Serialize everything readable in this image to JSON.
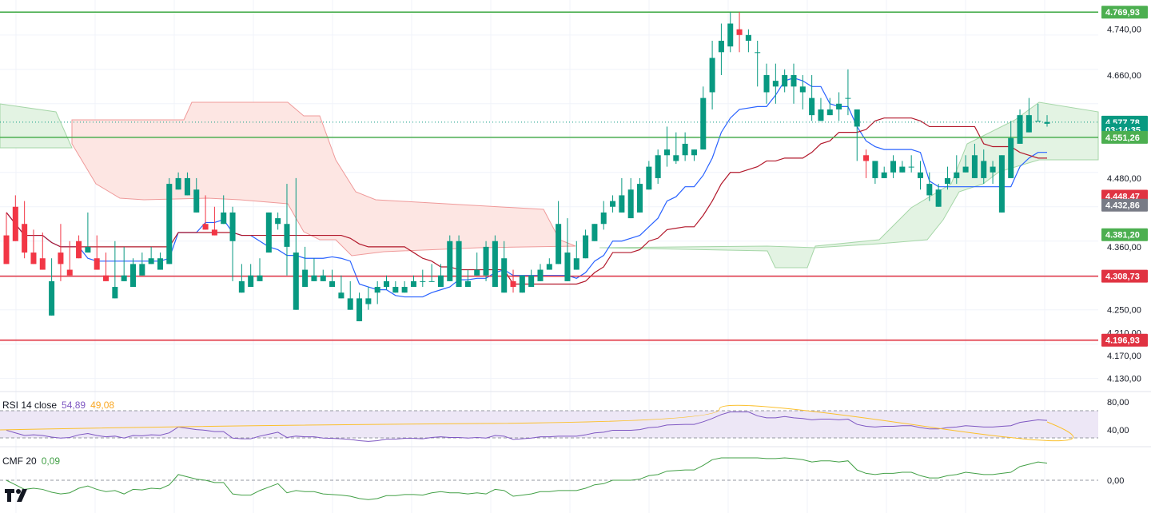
{
  "colors": {
    "up": "#089981",
    "down": "#f23645",
    "green_level": "#4caf50",
    "red_level": "#e03342",
    "grey_badge": "#787b86",
    "tenkan": "#2962ff",
    "kijun": "#b2182b",
    "cloud_bull": "#e3f3e3",
    "cloud_bear": "#fde6e3",
    "rsi_line": "#7e57c2",
    "rsi_ma": "#fbc02d",
    "rsi_band": "#ede7f6",
    "cmf_line": "#43a047"
  },
  "price_axis": {
    "ticks": [
      "4.740,00",
      "4.660,00",
      "4.480,00",
      "4.360,00",
      "4.250,00",
      "4.210,00",
      "4.170,00",
      "4.130,00"
    ]
  },
  "price_badges": [
    {
      "text": "4.769,93",
      "kind": "green"
    },
    {
      "text": "4.577,78",
      "kind": "green"
    },
    {
      "text": "03:14:35",
      "kind": "green"
    },
    {
      "text": "4.551,26",
      "kind": "green"
    },
    {
      "text": "4.448,47",
      "kind": "red"
    },
    {
      "text": "4.432,86",
      "kind": "grey"
    },
    {
      "text": "4.381,20",
      "kind": "green"
    },
    {
      "text": "4.308,73",
      "kind": "red"
    },
    {
      "text": "4.196,93",
      "kind": "red"
    }
  ],
  "rsi": {
    "name": "RSI 14 close",
    "value": "54,89",
    "ma_value": "49,08",
    "ticks": [
      "80,00",
      "40,00"
    ]
  },
  "cmf": {
    "name": "CMF 20",
    "value": "0,09",
    "ticks": [
      "0,00"
    ]
  },
  "chart_data": {
    "type": "candlestick",
    "y_range": [
      4110,
      4780
    ],
    "levels": [
      {
        "value": 4769.93,
        "color": "green"
      },
      {
        "value": 4551.26,
        "color": "green"
      },
      {
        "value": 4308.73,
        "color": "red"
      },
      {
        "value": 4196.93,
        "color": "red"
      }
    ],
    "last_price": 4577.78,
    "candles": [
      [
        4380,
        4400,
        4330,
        4420
      ],
      [
        4430,
        4450,
        4370,
        4380
      ],
      [
        4400,
        4440,
        4350,
        4340
      ],
      [
        4350,
        4390,
        4330,
        4350
      ],
      [
        4340,
        4385,
        4320,
        4340
      ],
      [
        4240,
        4340,
        4300,
        4315
      ],
      [
        4350,
        4400,
        4330,
        4300
      ],
      [
        4320,
        4370,
        4310,
        4310
      ],
      [
        4370,
        4380,
        4340,
        4350
      ],
      [
        4350,
        4420,
        4360,
        4370
      ],
      [
        4340,
        4380,
        4320,
        4340
      ],
      [
        4310,
        4350,
        4300,
        4320
      ],
      [
        4270,
        4370,
        4290,
        4330
      ],
      [
        4300,
        4360,
        4310,
        4300
      ],
      [
        4290,
        4320,
        4330,
        4340
      ],
      [
        4310,
        4350,
        4330,
        4335
      ],
      [
        4330,
        4360,
        4340,
        4350
      ],
      [
        4320,
        4350,
        4340,
        4345
      ],
      [
        4330,
        4480,
        4470,
        4380
      ],
      [
        4460,
        4490,
        4480,
        4470
      ],
      [
        4450,
        4490,
        4480,
        4450
      ],
      [
        4420,
        4480,
        4460,
        4430
      ],
      [
        4400,
        4450,
        4390,
        4420
      ],
      [
        4390,
        4430,
        4380,
        4400
      ],
      [
        4400,
        4450,
        4420,
        4400
      ],
      [
        4370,
        4430,
        4420,
        4300
      ],
      [
        4280,
        4330,
        4300,
        4290
      ],
      [
        4290,
        4330,
        4310,
        4290
      ],
      [
        4300,
        4340,
        4310,
        4330
      ],
      [
        4350,
        4420,
        4420,
        4360
      ],
      [
        4400,
        4420,
        4410,
        4390
      ],
      [
        4360,
        4470,
        4400,
        4310
      ],
      [
        4250,
        4480,
        4350,
        4330
      ],
      [
        4290,
        4360,
        4320,
        4320
      ],
      [
        4300,
        4340,
        4310,
        4320
      ],
      [
        4300,
        4320,
        4310,
        4300
      ],
      [
        4290,
        4320,
        4300,
        4295
      ],
      [
        4270,
        4310,
        4280,
        4290
      ],
      [
        4250,
        4300,
        4270,
        4280
      ],
      [
        4230,
        4280,
        4270,
        4260
      ],
      [
        4260,
        4290,
        4270,
        4250
      ],
      [
        4280,
        4300,
        4290,
        4260
      ],
      [
        4290,
        4310,
        4300,
        4285
      ],
      [
        4280,
        4300,
        4290,
        4285
      ],
      [
        4280,
        4300,
        4290,
        4295
      ],
      [
        4290,
        4310,
        4300,
        4295
      ],
      [
        4300,
        4320,
        4300,
        4290
      ],
      [
        4300,
        4330,
        4300,
        4310
      ],
      [
        4290,
        4330,
        4310,
        4320
      ],
      [
        4300,
        4380,
        4370,
        4310
      ],
      [
        4290,
        4380,
        4370,
        4310
      ],
      [
        4290,
        4320,
        4300,
        4300
      ],
      [
        4310,
        4350,
        4320,
        4310
      ],
      [
        4310,
        4370,
        4360,
        4300
      ],
      [
        4290,
        4380,
        4370,
        4340
      ],
      [
        4280,
        4370,
        4340,
        4330
      ],
      [
        4300,
        4320,
        4290,
        4280
      ],
      [
        4280,
        4310,
        4310,
        4290
      ],
      [
        4290,
        4320,
        4310,
        4300
      ],
      [
        4300,
        4330,
        4320,
        4320
      ],
      [
        4320,
        4340,
        4330,
        4320
      ],
      [
        4330,
        4440,
        4400,
        4330
      ],
      [
        4300,
        4410,
        4350,
        4330
      ],
      [
        4320,
        4370,
        4340,
        4330
      ],
      [
        4340,
        4390,
        4380,
        4350
      ],
      [
        4370,
        4400,
        4400,
        4380
      ],
      [
        4400,
        4440,
        4420,
        4390
      ],
      [
        4430,
        4450,
        4440,
        4420
      ],
      [
        4420,
        4480,
        4450,
        4420
      ],
      [
        4410,
        4480,
        4460,
        4420
      ],
      [
        4420,
        4480,
        4470,
        4430
      ],
      [
        4460,
        4510,
        4500,
        4460
      ],
      [
        4480,
        4530,
        4520,
        4470
      ],
      [
        4520,
        4570,
        4530,
        4500
      ],
      [
        4510,
        4560,
        4520,
        4505
      ],
      [
        4520,
        4560,
        4540,
        4510
      ],
      [
        4520,
        4530,
        4530,
        4510
      ],
      [
        4530,
        4640,
        4620,
        4550
      ],
      [
        4630,
        4720,
        4690,
        4600
      ],
      [
        4700,
        4750,
        4720,
        4660
      ],
      [
        4710,
        4770,
        4750,
        4700
      ],
      [
        4740,
        4770,
        4730,
        4700
      ],
      [
        4720,
        4740,
        4730,
        4700
      ],
      [
        4700,
        4720,
        4700,
        4640
      ],
      [
        4630,
        4680,
        4660,
        4610
      ],
      [
        4640,
        4680,
        4650,
        4610
      ],
      [
        4640,
        4670,
        4660,
        4630
      ],
      [
        4640,
        4680,
        4660,
        4610
      ],
      [
        4630,
        4660,
        4640,
        4600
      ],
      [
        4590,
        4660,
        4620,
        4580
      ],
      [
        4580,
        4620,
        4600,
        4590
      ],
      [
        4590,
        4620,
        4600,
        4590
      ],
      [
        4600,
        4630,
        4610,
        4580
      ],
      [
        4620,
        4670,
        4620,
        4590
      ],
      [
        4570,
        4600,
        4600,
        4510
      ],
      [
        4520,
        4530,
        4510,
        4480
      ],
      [
        4480,
        4510,
        4510,
        4470
      ],
      [
        4480,
        4500,
        4490,
        4480
      ],
      [
        4490,
        4520,
        4510,
        4480
      ],
      [
        4490,
        4510,
        4500,
        4490
      ],
      [
        4500,
        4520,
        4500,
        4490
      ],
      [
        4480,
        4510,
        4490,
        4460
      ],
      [
        4450,
        4490,
        4470,
        4440
      ],
      [
        4430,
        4470,
        4460,
        4440
      ],
      [
        4470,
        4500,
        4480,
        4460
      ],
      [
        4480,
        4520,
        4490,
        4470
      ],
      [
        4490,
        4520,
        4500,
        4490
      ],
      [
        4480,
        4540,
        4520,
        4480
      ],
      [
        4480,
        4530,
        4510,
        4470
      ],
      [
        4490,
        4510,
        4500,
        4470
      ],
      [
        4420,
        4520,
        4520,
        4480
      ],
      [
        4480,
        4580,
        4550,
        4490
      ],
      [
        4540,
        4600,
        4590,
        4540
      ],
      [
        4560,
        4620,
        4590,
        4560
      ],
      [
        4580,
        4610,
        4580,
        4580
      ],
      [
        4575,
        4590,
        4578,
        4570
      ]
    ]
  }
}
